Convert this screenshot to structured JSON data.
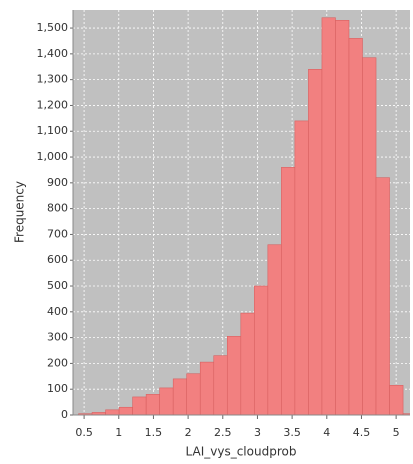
{
  "chart_data": {
    "type": "histogram",
    "x_label": "LAI_vys_cloudprob",
    "y_label": "Frequency",
    "bins": [
      0.42,
      0.615,
      0.81,
      1.005,
      1.2,
      1.395,
      1.59,
      1.785,
      1.98,
      2.175,
      2.37,
      2.565,
      2.76,
      2.955,
      3.15,
      3.345,
      3.54,
      3.735,
      3.93,
      4.125,
      4.32,
      4.515,
      4.71,
      4.905,
      5.1,
      5.295
    ],
    "values": [
      5,
      10,
      20,
      30,
      70,
      80,
      105,
      140,
      160,
      205,
      230,
      305,
      395,
      500,
      660,
      960,
      1140,
      1340,
      1540,
      1530,
      1460,
      1385,
      920,
      115,
      5
    ],
    "color": "#f28080",
    "xlim": [
      0.34,
      5.2
    ],
    "xticks": [
      0.5,
      1.0,
      1.5,
      2.0,
      2.5,
      3.0,
      3.5,
      4.0,
      4.5,
      5.0
    ],
    "ylim": [
      0,
      1570
    ],
    "yticks": [
      0,
      100,
      200,
      300,
      400,
      500,
      600,
      700,
      800,
      900,
      {
        "value": 1000,
        "label": "1,000"
      },
      {
        "value": 1100,
        "label": "1,100"
      },
      {
        "value": 1200,
        "label": "1,200"
      },
      {
        "value": 1300,
        "label": "1,300"
      },
      {
        "value": 1400,
        "label": "1,400"
      },
      {
        "value": 1500,
        "label": "1,500"
      }
    ],
    "grid": true
  }
}
